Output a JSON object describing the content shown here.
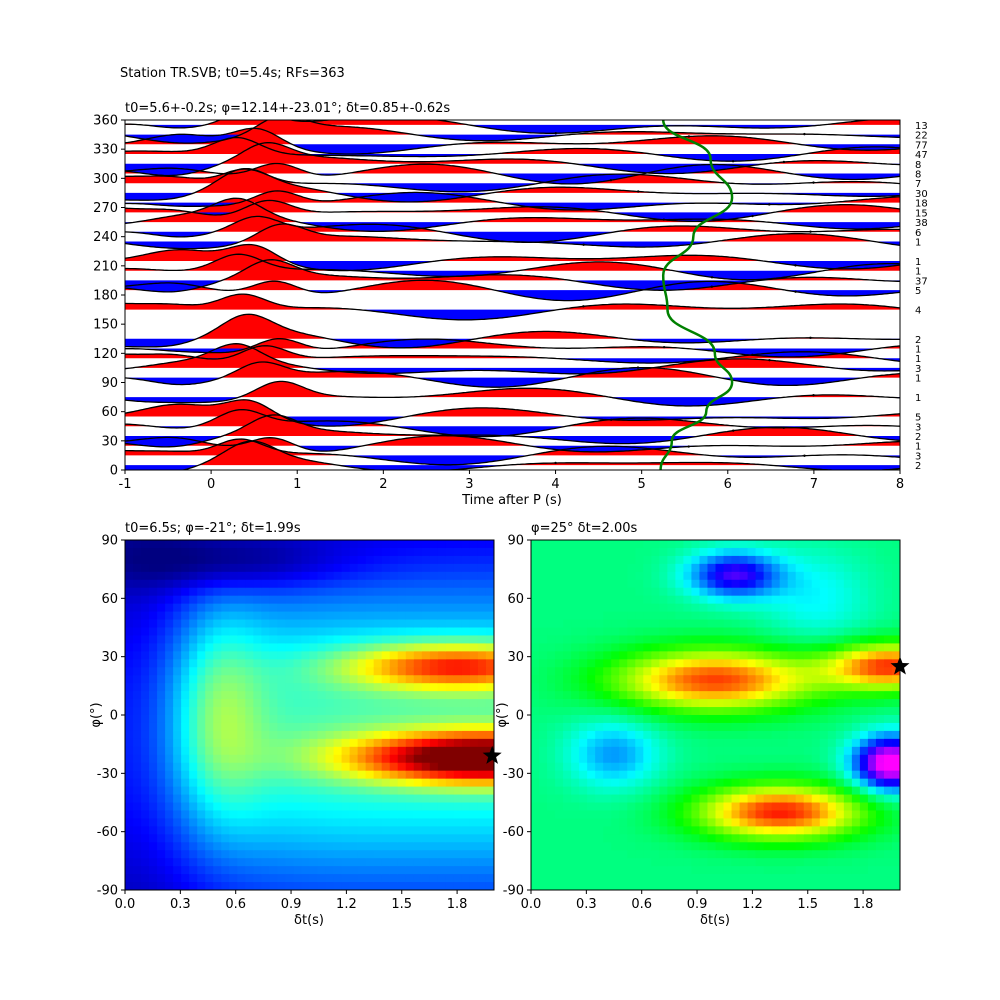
{
  "figure": {
    "suptitle": "Station TR.SVB; t0=5.4s; RFs=363"
  },
  "chart_data": [
    {
      "type": "line",
      "panel": "receiver-function-stack",
      "title": "t0=5.6+-0.2s; φ=12.14+-23.01°; δt=0.85+-0.62s",
      "xlabel": "Time after P (s)",
      "ylabel": "",
      "xlim": [
        -1,
        8
      ],
      "ylim": [
        0,
        360
      ],
      "xticks": [
        -1,
        0,
        1,
        2,
        3,
        4,
        5,
        6,
        7,
        8
      ],
      "yticks": [
        0,
        30,
        60,
        90,
        120,
        150,
        180,
        210,
        240,
        270,
        300,
        330,
        360
      ],
      "grid": false,
      "fill_positive": "#ff0000",
      "fill_negative": "#0000ff",
      "trace_color": "#000000",
      "baz_bins": [
        0,
        10,
        20,
        30,
        40,
        50,
        60,
        70,
        80,
        90,
        100,
        110,
        120,
        130,
        140,
        150,
        160,
        170,
        180,
        190,
        200,
        210,
        220,
        230,
        240,
        250,
        260,
        270,
        280,
        290,
        300,
        310,
        320,
        330,
        340,
        350,
        360
      ],
      "traces": [
        {
          "baz": 5,
          "count": "2"
        },
        {
          "baz": 15,
          "count": "3"
        },
        {
          "baz": 25,
          "count": "1"
        },
        {
          "baz": 35,
          "count": "2"
        },
        {
          "baz": 45,
          "count": "3"
        },
        {
          "baz": 55,
          "count": "5"
        },
        {
          "baz": 75,
          "count": "1"
        },
        {
          "baz": 95,
          "count": "1"
        },
        {
          "baz": 105,
          "count": "3"
        },
        {
          "baz": 115,
          "count": "1"
        },
        {
          "baz": 125,
          "count": "1"
        },
        {
          "baz": 135,
          "count": "2"
        },
        {
          "baz": 165,
          "count": "4"
        },
        {
          "baz": 185,
          "count": "5"
        },
        {
          "baz": 195,
          "count": "37"
        },
        {
          "baz": 205,
          "count": "1"
        },
        {
          "baz": 215,
          "count": "1"
        },
        {
          "baz": 235,
          "count": "1"
        },
        {
          "baz": 245,
          "count": "6"
        },
        {
          "baz": 255,
          "count": "38"
        },
        {
          "baz": 265,
          "count": "15"
        },
        {
          "baz": 275,
          "count": "18"
        },
        {
          "baz": 285,
          "count": "30"
        },
        {
          "baz": 295,
          "count": "7"
        },
        {
          "baz": 305,
          "count": "8"
        },
        {
          "baz": 315,
          "count": "8"
        },
        {
          "baz": 325,
          "count": "47"
        },
        {
          "baz": 335,
          "count": "77"
        },
        {
          "baz": 345,
          "count": "22"
        },
        {
          "baz": 355,
          "count": "13"
        }
      ],
      "moveout_curve": {
        "color": "#008000",
        "points": [
          [
            5.22,
            0
          ],
          [
            5.35,
            30
          ],
          [
            5.75,
            60
          ],
          [
            6.05,
            90
          ],
          [
            5.85,
            120
          ],
          [
            5.3,
            165
          ],
          [
            5.25,
            200
          ],
          [
            5.6,
            240
          ],
          [
            6.05,
            280
          ],
          [
            5.8,
            320
          ],
          [
            5.25,
            360
          ]
        ]
      }
    },
    {
      "type": "heatmap",
      "panel": "grid-search-left",
      "title": "t0=6.5s; φ=-21°; δt=1.99s",
      "xlabel": "δt(s)",
      "ylabel": "φ(°)",
      "xlim": [
        0,
        2
      ],
      "ylim": [
        -90,
        90
      ],
      "xticks": [
        0.0,
        0.3,
        0.6,
        0.9,
        1.2,
        1.5,
        1.8
      ],
      "yticks": [
        -90,
        -60,
        -30,
        0,
        30,
        60,
        90
      ],
      "colormap": "jet",
      "star": {
        "dt": 1.99,
        "phi": -21
      }
    },
    {
      "type": "heatmap",
      "panel": "grid-search-right",
      "title": "φ=25° δt=2.00s",
      "xlabel": "δt(s)",
      "ylabel": "φ(°)",
      "xlim": [
        0,
        2
      ],
      "ylim": [
        -90,
        90
      ],
      "xticks": [
        0.0,
        0.3,
        0.6,
        0.9,
        1.2,
        1.5,
        1.8
      ],
      "yticks": [
        -90,
        -60,
        -30,
        0,
        30,
        60,
        90
      ],
      "colormap": "gist_rainbow",
      "star": {
        "dt": 2.0,
        "phi": 25
      }
    }
  ]
}
